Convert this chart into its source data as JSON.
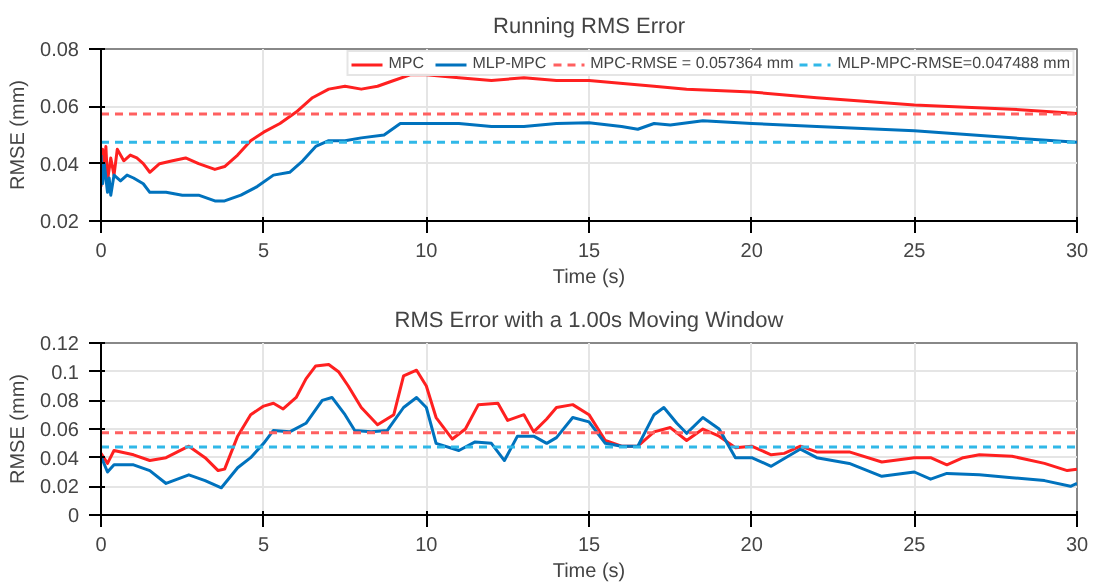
{
  "chart_data": [
    {
      "type": "line",
      "title": "Running RMS Error",
      "xlabel": "Time (s)",
      "ylabel": "RMSE (mm)",
      "xlim": [
        0,
        30
      ],
      "xticks": [
        0,
        5,
        10,
        15,
        20,
        25,
        30
      ],
      "ylim": [
        0.02,
        0.08
      ],
      "yticks": [
        0.02,
        0.04,
        0.06,
        0.08
      ],
      "grid": true,
      "legend": "top right",
      "line_style": "solid",
      "marker": "none",
      "series": [
        {
          "name": "MPC",
          "color": "#ff2020",
          "x": [
            0,
            0.05,
            0.1,
            0.15,
            0.2,
            0.3,
            0.4,
            0.5,
            0.7,
            0.9,
            1.1,
            1.3,
            1.5,
            1.8,
            2.2,
            2.6,
            3.0,
            3.5,
            3.8,
            4.2,
            4.6,
            5,
            5.5,
            6,
            6.5,
            7,
            7.5,
            8,
            8.5,
            9,
            9.5,
            10,
            11,
            12,
            13,
            14,
            15,
            17,
            18,
            20,
            22,
            25,
            28,
            30
          ],
          "values": [
            0.032,
            0.045,
            0.036,
            0.046,
            0.034,
            0.042,
            0.036,
            0.045,
            0.041,
            0.043,
            0.042,
            0.04,
            0.037,
            0.04,
            0.041,
            0.042,
            0.04,
            0.038,
            0.039,
            0.043,
            0.048,
            0.051,
            0.054,
            0.058,
            0.063,
            0.066,
            0.067,
            0.066,
            0.067,
            0.069,
            0.071,
            0.071,
            0.07,
            0.069,
            0.07,
            0.069,
            0.069,
            0.067,
            0.066,
            0.065,
            0.063,
            0.0605,
            0.059,
            0.0575
          ]
        },
        {
          "name": "MLP-MPC",
          "color": "#0072bd",
          "x": [
            0,
            0.05,
            0.1,
            0.2,
            0.25,
            0.3,
            0.4,
            0.6,
            0.8,
            1,
            1.3,
            1.5,
            2,
            2.5,
            3,
            3.5,
            3.8,
            4.3,
            4.8,
            5.3,
            5.8,
            6.2,
            6.6,
            7,
            7.5,
            8,
            8.7,
            9.2,
            10,
            11,
            12,
            13,
            14,
            15,
            16,
            16.5,
            17,
            17.5,
            18.5,
            20,
            22,
            25,
            28,
            30
          ],
          "values": [
            0.043,
            0.033,
            0.04,
            0.03,
            0.035,
            0.029,
            0.036,
            0.034,
            0.036,
            0.035,
            0.033,
            0.03,
            0.03,
            0.029,
            0.029,
            0.027,
            0.027,
            0.029,
            0.032,
            0.036,
            0.037,
            0.041,
            0.046,
            0.048,
            0.048,
            0.049,
            0.05,
            0.054,
            0.054,
            0.054,
            0.053,
            0.053,
            0.054,
            0.0543,
            0.053,
            0.052,
            0.054,
            0.0535,
            0.055,
            0.054,
            0.053,
            0.0515,
            0.049,
            0.0475
          ]
        }
      ],
      "ref_lines": [
        {
          "axis": "y",
          "value": 0.057364,
          "label": "MPC-RMSE = 0.057364 mm",
          "color": "#ff6060",
          "line_style": "dashed"
        },
        {
          "axis": "y",
          "value": 0.047488,
          "label": "MLP-MPC-RMSE=0.047488 mm",
          "color": "#30b8e8",
          "line_style": "dashed"
        }
      ]
    },
    {
      "type": "line",
      "title": "RMS Error with a 1.00s Moving Window",
      "xlabel": "Time (s)",
      "ylabel": "RMSE (mm)",
      "xlim": [
        0,
        30
      ],
      "xticks": [
        0,
        5,
        10,
        15,
        20,
        25,
        30
      ],
      "ylim": [
        0,
        0.12
      ],
      "yticks": [
        0,
        0.02,
        0.04,
        0.06,
        0.08,
        0.1,
        0.12
      ],
      "grid": true,
      "line_style": "solid",
      "marker": "none",
      "series": [
        {
          "color": "#ff2020",
          "x": [
            0,
            0.2,
            0.4,
            1,
            1.5,
            2,
            2.7,
            3.2,
            3.6,
            3.8,
            4.2,
            4.6,
            5,
            5.3,
            5.6,
            6,
            6.3,
            6.6,
            7,
            7.3,
            7.6,
            8,
            8.5,
            9,
            9.3,
            9.7,
            10,
            10.3,
            10.8,
            11.2,
            11.6,
            12.2,
            12.5,
            13,
            13.3,
            13.7,
            14,
            14.5,
            15,
            15.5,
            16,
            16.5,
            17,
            17.5,
            18,
            18.5,
            19,
            19.5,
            20,
            20.6,
            21,
            21.5,
            22,
            23,
            24,
            25,
            25.5,
            26,
            26.5,
            27,
            28,
            29,
            29.7,
            30
          ],
          "values": [
            0.043,
            0.036,
            0.045,
            0.042,
            0.038,
            0.04,
            0.048,
            0.04,
            0.031,
            0.032,
            0.055,
            0.07,
            0.076,
            0.078,
            0.074,
            0.082,
            0.095,
            0.104,
            0.105,
            0.1,
            0.09,
            0.075,
            0.063,
            0.07,
            0.097,
            0.101,
            0.09,
            0.068,
            0.053,
            0.06,
            0.077,
            0.078,
            0.066,
            0.07,
            0.058,
            0.067,
            0.075,
            0.077,
            0.07,
            0.052,
            0.048,
            0.048,
            0.058,
            0.061,
            0.052,
            0.06,
            0.055,
            0.047,
            0.048,
            0.042,
            0.043,
            0.048,
            0.044,
            0.044,
            0.037,
            0.04,
            0.04,
            0.035,
            0.04,
            0.042,
            0.041,
            0.036,
            0.031,
            0.032
          ]
        },
        {
          "color": "#0072bd",
          "x": [
            0,
            0.2,
            0.4,
            1,
            1.5,
            2,
            2.7,
            3.2,
            3.7,
            4.2,
            4.6,
            5,
            5.3,
            5.8,
            6.3,
            6.8,
            7.1,
            7.5,
            7.8,
            8.3,
            8.8,
            9.3,
            9.7,
            10,
            10.3,
            11,
            11.5,
            12,
            12.4,
            12.8,
            13.3,
            13.7,
            14,
            14.5,
            15,
            15.5,
            16,
            16.5,
            17,
            17.3,
            17.7,
            18,
            18.5,
            19,
            19.5,
            20,
            20.6,
            21.5,
            22,
            23,
            24,
            25,
            25.5,
            26,
            27,
            28,
            29,
            29.8,
            30
          ],
          "values": [
            0.041,
            0.03,
            0.035,
            0.035,
            0.031,
            0.022,
            0.028,
            0.024,
            0.019,
            0.033,
            0.04,
            0.05,
            0.059,
            0.058,
            0.064,
            0.08,
            0.082,
            0.07,
            0.059,
            0.058,
            0.059,
            0.075,
            0.082,
            0.075,
            0.05,
            0.045,
            0.051,
            0.05,
            0.038,
            0.055,
            0.055,
            0.05,
            0.054,
            0.068,
            0.065,
            0.05,
            0.048,
            0.048,
            0.07,
            0.075,
            0.064,
            0.057,
            0.068,
            0.06,
            0.04,
            0.04,
            0.034,
            0.046,
            0.04,
            0.036,
            0.027,
            0.03,
            0.025,
            0.029,
            0.028,
            0.026,
            0.024,
            0.02,
            0.022
          ]
        }
      ],
      "ref_lines": [
        {
          "axis": "y",
          "value": 0.057364,
          "color": "#ff6060",
          "line_style": "dashed"
        },
        {
          "axis": "y",
          "value": 0.047488,
          "color": "#30b8e8",
          "line_style": "dashed"
        }
      ]
    }
  ]
}
